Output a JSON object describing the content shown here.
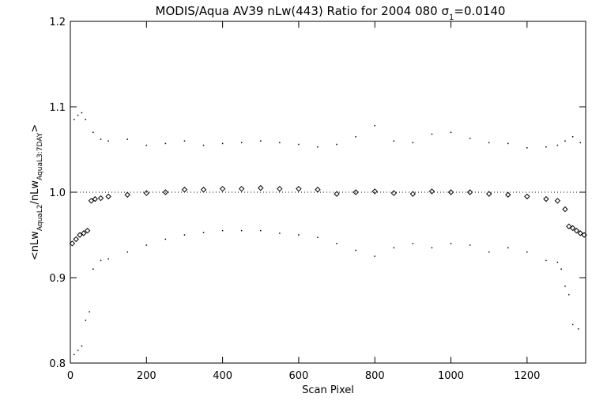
{
  "chart_data": {
    "type": "scatter",
    "title": "MODIS/Aqua AV39 nLw(443) Ratio for 2004 080 σ1=0.0140",
    "title_parts": {
      "main": "MODIS/Aqua AV39 nLw(443) Ratio for 2004 080 ",
      "sigma": "σ",
      "sigma_sub": "1",
      "sigma_value": "=0.0140"
    },
    "xlabel": "Scan Pixel",
    "ylabel_parts": {
      "prefix": "<nLw",
      "sub1": "AquaL2",
      "mid": "/nLw",
      "sub2": "AquaL3:7DAY",
      "suffix": ">"
    },
    "xlim": [
      0,
      1354
    ],
    "ylim": [
      0.8,
      1.2
    ],
    "xticks": [
      "0",
      "200",
      "400",
      "600",
      "800",
      "1000",
      "1200"
    ],
    "yticks": [
      "0.8",
      "0.9",
      "1.0",
      "1.1",
      "1.2"
    ],
    "reference_line": 1.0,
    "series": [
      {
        "style": "diamond",
        "x": [
          5,
          15,
          25,
          35,
          45,
          55,
          65,
          80,
          100,
          150,
          200,
          250,
          300,
          350,
          400,
          450,
          500,
          550,
          600,
          650,
          700,
          750,
          800,
          850,
          900,
          950,
          1000,
          1050,
          1100,
          1150,
          1200,
          1250,
          1280,
          1300,
          1310,
          1320,
          1330,
          1340,
          1350
        ],
        "y": [
          0.94,
          0.945,
          0.95,
          0.952,
          0.955,
          0.99,
          0.992,
          0.993,
          0.995,
          0.997,
          0.999,
          1.0,
          1.003,
          1.003,
          1.004,
          1.004,
          1.005,
          1.004,
          1.004,
          1.003,
          0.998,
          1.0,
          1.001,
          0.999,
          0.998,
          1.001,
          1.0,
          1.0,
          0.998,
          0.997,
          0.995,
          0.992,
          0.99,
          0.98,
          0.96,
          0.958,
          0.955,
          0.952,
          0.95
        ]
      },
      {
        "style": "dot",
        "x": [
          10,
          20,
          30,
          40,
          60,
          80,
          100,
          150,
          200,
          250,
          300,
          350,
          400,
          450,
          500,
          550,
          600,
          650,
          700,
          750,
          800,
          850,
          900,
          950,
          1000,
          1050,
          1100,
          1150,
          1200,
          1250,
          1280,
          1300,
          1320,
          1340
        ],
        "y": [
          1.085,
          1.09,
          1.093,
          1.085,
          1.07,
          1.062,
          1.06,
          1.062,
          1.055,
          1.057,
          1.06,
          1.055,
          1.057,
          1.058,
          1.06,
          1.058,
          1.056,
          1.053,
          1.056,
          1.065,
          1.078,
          1.06,
          1.058,
          1.068,
          1.07,
          1.063,
          1.058,
          1.057,
          1.052,
          1.053,
          1.055,
          1.06,
          1.065,
          1.058
        ]
      },
      {
        "style": "dot",
        "x": [
          10,
          20,
          30,
          40,
          50,
          60,
          80,
          100,
          150,
          200,
          250,
          300,
          350,
          400,
          450,
          500,
          550,
          600,
          650,
          700,
          750,
          800,
          850,
          900,
          950,
          1000,
          1050,
          1100,
          1150,
          1200,
          1250,
          1280,
          1290,
          1300,
          1310,
          1320,
          1335
        ],
        "y": [
          0.81,
          0.815,
          0.82,
          0.85,
          0.86,
          0.91,
          0.92,
          0.922,
          0.93,
          0.938,
          0.945,
          0.95,
          0.953,
          0.955,
          0.955,
          0.955,
          0.952,
          0.95,
          0.947,
          0.94,
          0.932,
          0.925,
          0.935,
          0.94,
          0.935,
          0.94,
          0.938,
          0.93,
          0.935,
          0.93,
          0.92,
          0.918,
          0.91,
          0.89,
          0.88,
          0.845,
          0.84
        ]
      }
    ]
  }
}
